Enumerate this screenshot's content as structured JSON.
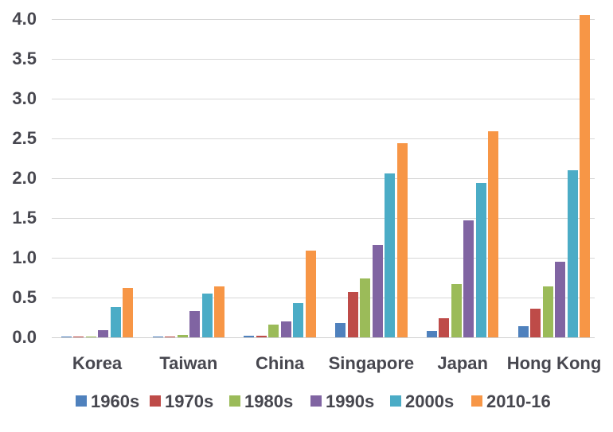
{
  "chart_data": {
    "type": "bar",
    "title": "",
    "xlabel": "",
    "ylabel": "",
    "categories": [
      "Korea",
      "Taiwan",
      "China",
      "Singapore",
      "Japan",
      "Hong Kong"
    ],
    "series": [
      {
        "name": "1960s",
        "color": "#4F81BD",
        "values": [
          0.005,
          0.005,
          0.02,
          0.18,
          0.08,
          0.14
        ]
      },
      {
        "name": "1970s",
        "color": "#BE4B48",
        "values": [
          0.005,
          0.01,
          0.02,
          0.57,
          0.24,
          0.36
        ]
      },
      {
        "name": "1980s",
        "color": "#9BBB59",
        "values": [
          0.01,
          0.03,
          0.16,
          0.74,
          0.67,
          0.64
        ]
      },
      {
        "name": "1990s",
        "color": "#8064A2",
        "values": [
          0.09,
          0.33,
          0.2,
          1.16,
          1.47,
          0.95
        ]
      },
      {
        "name": "2000s",
        "color": "#4BACC6",
        "values": [
          0.38,
          0.55,
          0.43,
          2.06,
          1.94,
          2.1
        ]
      },
      {
        "name": "2010-16",
        "color": "#F79646",
        "values": [
          0.62,
          0.64,
          1.09,
          2.44,
          2.59,
          4.05
        ]
      }
    ],
    "y_ticks": [
      "0.0",
      "0.5",
      "1.0",
      "1.5",
      "2.0",
      "2.5",
      "3.0",
      "3.5",
      "4.0"
    ],
    "ylim": [
      0,
      4.0
    ],
    "y_tick_step": 0.5,
    "grid": true,
    "legend_position": "bottom",
    "colors": {
      "gridline": "#d7d7d7",
      "label_text": "#47474f",
      "background": "#ffffff"
    }
  }
}
